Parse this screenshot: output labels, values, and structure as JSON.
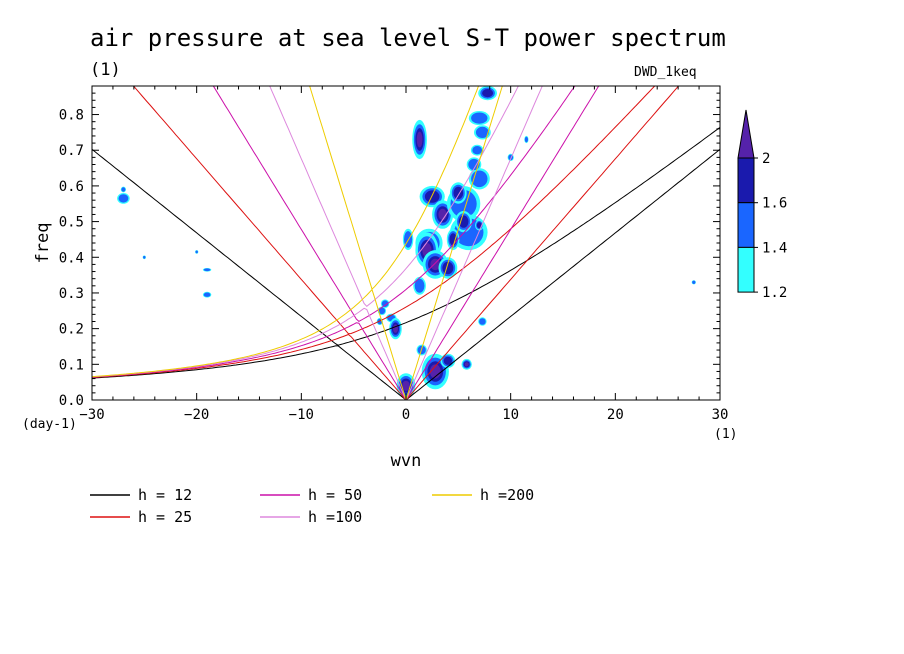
{
  "header": {
    "title": "air pressure at sea level S-T power spectrum",
    "subtitle": "(1)",
    "model_tag": "DWD_1keq"
  },
  "chart_data": {
    "type": "heatmap",
    "title": "air pressure at sea level S-T power spectrum",
    "xlabel": "wvn",
    "ylabel": "freq",
    "x_unit": "(1)",
    "y_unit": "(day-1)",
    "xlim": [
      -30,
      30
    ],
    "ylim": [
      0,
      0.88
    ],
    "x_ticks": [
      -30,
      -20,
      -10,
      0,
      10,
      20,
      30
    ],
    "x_tick_labels": [
      "−30",
      "−20",
      "−10",
      "0",
      "10",
      "20",
      "30"
    ],
    "y_ticks": [
      0.0,
      0.1,
      0.2,
      0.3,
      0.4,
      0.5,
      0.6,
      0.7,
      0.8
    ],
    "y_tick_labels": [
      "0.0",
      "0.1",
      "0.2",
      "0.3",
      "0.4",
      "0.5",
      "0.6",
      "0.7",
      "0.8"
    ],
    "colorbar": {
      "levels": [
        1.2,
        1.4,
        1.6,
        2
      ],
      "level_labels": [
        "1.2",
        "1.4",
        "1.6",
        "2"
      ],
      "colors": [
        "#33ffff",
        "#1a66ff",
        "#1a1aad",
        "#5522aa"
      ]
    },
    "dispersion_curves": [
      {
        "label": "h = 12",
        "h": 12,
        "color": "#000000"
      },
      {
        "label": "h = 25",
        "h": 25,
        "color": "#dd1111"
      },
      {
        "label": "h = 50",
        "h": 50,
        "color": "#cc11aa"
      },
      {
        "label": "h =100",
        "h": 100,
        "color": "#dd88dd"
      },
      {
        "label": "h =200",
        "h": 200,
        "color": "#eecc00"
      }
    ],
    "blobs": [
      {
        "x": 1.3,
        "y": 0.73,
        "rx": 0.7,
        "ry": 0.055,
        "level": 3
      },
      {
        "x": 0.2,
        "y": 0.45,
        "rx": 0.5,
        "ry": 0.03,
        "level": 1
      },
      {
        "x": 2.5,
        "y": 0.57,
        "rx": 1.2,
        "ry": 0.03,
        "level": 2
      },
      {
        "x": 3.5,
        "y": 0.52,
        "rx": 1.0,
        "ry": 0.04,
        "level": 3
      },
      {
        "x": 5.5,
        "y": 0.55,
        "rx": 1.6,
        "ry": 0.05,
        "level": 1
      },
      {
        "x": 6.0,
        "y": 0.47,
        "rx": 1.8,
        "ry": 0.05,
        "level": 1
      },
      {
        "x": 7.0,
        "y": 0.62,
        "rx": 1.0,
        "ry": 0.03,
        "level": 1
      },
      {
        "x": 6.5,
        "y": 0.66,
        "rx": 0.7,
        "ry": 0.02,
        "level": 1
      },
      {
        "x": 7.3,
        "y": 0.75,
        "rx": 0.8,
        "ry": 0.02,
        "level": 1
      },
      {
        "x": 7.0,
        "y": 0.79,
        "rx": 1.0,
        "ry": 0.02,
        "level": 1
      },
      {
        "x": 7.8,
        "y": 0.86,
        "rx": 0.9,
        "ry": 0.02,
        "level": 2
      },
      {
        "x": 6.8,
        "y": 0.7,
        "rx": 0.6,
        "ry": 0.015,
        "level": 1
      },
      {
        "x": 5.0,
        "y": 0.58,
        "rx": 0.8,
        "ry": 0.03,
        "level": 2
      },
      {
        "x": 5.5,
        "y": 0.5,
        "rx": 0.8,
        "ry": 0.03,
        "level": 2
      },
      {
        "x": 2.2,
        "y": 0.44,
        "rx": 1.3,
        "ry": 0.04,
        "level": 2
      },
      {
        "x": 2.0,
        "y": 0.42,
        "rx": 1.1,
        "ry": 0.05,
        "level": 3
      },
      {
        "x": 2.8,
        "y": 0.38,
        "rx": 1.2,
        "ry": 0.04,
        "level": 3
      },
      {
        "x": 4.0,
        "y": 0.37,
        "rx": 0.9,
        "ry": 0.03,
        "level": 2
      },
      {
        "x": 4.5,
        "y": 0.45,
        "rx": 0.6,
        "ry": 0.03,
        "level": 2
      },
      {
        "x": 1.3,
        "y": 0.32,
        "rx": 0.6,
        "ry": 0.025,
        "level": 1
      },
      {
        "x": -2.0,
        "y": 0.27,
        "rx": 0.4,
        "ry": 0.012,
        "level": 1
      },
      {
        "x": -2.3,
        "y": 0.25,
        "rx": 0.4,
        "ry": 0.012,
        "level": 1
      },
      {
        "x": -1.4,
        "y": 0.23,
        "rx": 0.5,
        "ry": 0.012,
        "level": 1
      },
      {
        "x": -1.0,
        "y": 0.2,
        "rx": 0.6,
        "ry": 0.03,
        "level": 3
      },
      {
        "x": -2.5,
        "y": 0.22,
        "rx": 0.3,
        "ry": 0.01,
        "level": 1
      },
      {
        "x": 1.5,
        "y": 0.14,
        "rx": 0.5,
        "ry": 0.015,
        "level": 1
      },
      {
        "x": 2.8,
        "y": 0.08,
        "rx": 1.3,
        "ry": 0.05,
        "level": 3
      },
      {
        "x": 0.0,
        "y": 0.04,
        "rx": 0.9,
        "ry": 0.035,
        "level": 3
      },
      {
        "x": 4.0,
        "y": 0.11,
        "rx": 0.7,
        "ry": 0.02,
        "level": 2
      },
      {
        "x": 5.8,
        "y": 0.1,
        "rx": 0.5,
        "ry": 0.015,
        "level": 3
      },
      {
        "x": 7.3,
        "y": 0.22,
        "rx": 0.4,
        "ry": 0.012,
        "level": 1
      },
      {
        "x": 7.0,
        "y": 0.49,
        "rx": 0.4,
        "ry": 0.015,
        "level": 2
      },
      {
        "x": 10.0,
        "y": 0.68,
        "rx": 0.3,
        "ry": 0.01,
        "level": 1
      },
      {
        "x": 11.5,
        "y": 0.73,
        "rx": 0.2,
        "ry": 0.01,
        "level": 1
      },
      {
        "x": -27.0,
        "y": 0.565,
        "rx": 0.6,
        "ry": 0.015,
        "level": 1
      },
      {
        "x": -27.0,
        "y": 0.59,
        "rx": 0.25,
        "ry": 0.008,
        "level": 1
      },
      {
        "x": -19.0,
        "y": 0.295,
        "rx": 0.4,
        "ry": 0.008,
        "level": 1
      },
      {
        "x": -19.0,
        "y": 0.365,
        "rx": 0.4,
        "ry": 0.005,
        "level": 1
      },
      {
        "x": -25.0,
        "y": 0.4,
        "rx": 0.15,
        "ry": 0.005,
        "level": 1
      },
      {
        "x": -20.0,
        "y": 0.415,
        "rx": 0.15,
        "ry": 0.005,
        "level": 1
      },
      {
        "x": 27.5,
        "y": 0.33,
        "rx": 0.2,
        "ry": 0.006,
        "level": 1
      }
    ]
  }
}
